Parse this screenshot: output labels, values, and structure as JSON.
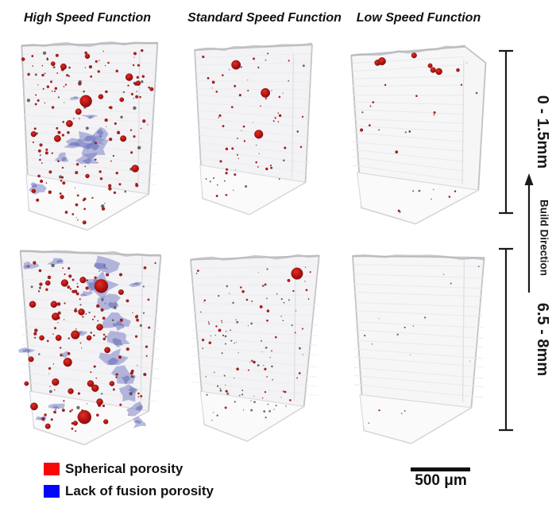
{
  "columns": [
    {
      "label": "High Speed Function"
    },
    {
      "label": "Standard Speed Function"
    },
    {
      "label": "Low Speed Function"
    }
  ],
  "rows": [
    {
      "label": "0 - 1.5mm"
    },
    {
      "label": "6.5 - 8mm"
    }
  ],
  "build_direction_label": "Build Direction",
  "scale_bar_label": "500 μm",
  "legend": {
    "items": [
      {
        "label": "Spherical porosity",
        "color": "#fa0505"
      },
      {
        "label": "Lack of fusion porosity",
        "color": "#0505fa"
      }
    ]
  },
  "colors": {
    "body": "#f3f3f5",
    "body_white": "#f6f6f7",
    "edge": "#c2c2c8",
    "floor": "#fafafb",
    "fold": "#d8d8dd",
    "streak": "#e9e9ee",
    "top_rough": "#b5b5bc",
    "sphere_hi": "#e03020",
    "sphere_mid": "#b11212",
    "sphere_lo": "#7d0a0a",
    "small_dot": "#9c1616",
    "speck": "#4f4444",
    "lof_fill": "#7d84c6",
    "lof_dark": "#5058ac"
  },
  "samples": [
    {
      "name": "high-speed 0-1.5mm",
      "column": "High Speed Function",
      "row": "0 - 1.5mm",
      "porosity": "many spherical pores, scattered lack-of-fusion patches mid-height",
      "seed": 11,
      "dots": 150,
      "dot_max_r": 0.9,
      "speck_ratio": 0.2,
      "tone": "light",
      "spheres": [
        [
          49,
          41,
          4
        ],
        [
          34,
          18,
          2
        ],
        [
          44,
          48,
          2
        ],
        [
          38,
          56,
          2.2
        ],
        [
          30,
          66,
          2.2
        ],
        [
          14,
          63,
          1.8
        ],
        [
          78,
          25,
          2.4
        ],
        [
          84,
          29,
          1.6
        ],
        [
          93,
          33,
          1.2
        ],
        [
          73,
          40,
          1.4
        ],
        [
          74,
          66,
          2
        ],
        [
          82,
          86,
          2.4
        ],
        [
          50,
          11,
          1.6
        ],
        [
          59,
          38,
          1.6
        ],
        [
          33,
          105,
          1.3
        ],
        [
          50,
          91,
          1.3
        ],
        [
          14,
          101,
          1.3
        ],
        [
          27,
          16,
          1.4
        ],
        [
          48,
          122,
          1.2
        ],
        [
          7,
          13,
          1.1
        ]
      ],
      "lof_blobs": [
        [
          50,
          67,
          11,
          5
        ],
        [
          56,
          73,
          8,
          6
        ],
        [
          43,
          70,
          9,
          3
        ],
        [
          58,
          63,
          5,
          4
        ],
        [
          50,
          79,
          7,
          4
        ],
        [
          33,
          79,
          4,
          3
        ],
        [
          16,
          99,
          5,
          4
        ],
        [
          51,
          51,
          5,
          1.5
        ],
        [
          41,
          39,
          3,
          1.2
        ]
      ]
    },
    {
      "name": "standard-speed 0-1.5mm",
      "column": "Standard Speed Function",
      "row": "0 - 1.5mm",
      "porosity": "moderate spherical porosity, three large pores, no lack of fusion",
      "seed": 22,
      "dots": 65,
      "dot_max_r": 0.7,
      "speck_ratio": 0.3,
      "tone": "light",
      "spheres": [
        [
          37,
          17,
          3.4
        ],
        [
          59,
          38,
          3.4
        ],
        [
          54,
          69,
          3.2
        ],
        [
          20,
          30,
          1
        ],
        [
          70,
          55,
          0.9
        ],
        [
          30,
          80,
          0.9
        ],
        [
          60,
          95,
          0.9
        ],
        [
          25,
          55,
          0.8
        ]
      ],
      "lof_blobs": []
    },
    {
      "name": "low-speed 0-1.5mm",
      "column": "Low Speed Function",
      "row": "0 - 1.5mm",
      "porosity": "few pores, small cluster of spherical pores near top",
      "seed": 33,
      "dots": 20,
      "dot_max_r": 0.5,
      "speck_ratio": 0.4,
      "tone": "white",
      "spheres": [
        [
          23,
          13,
          2
        ],
        [
          26,
          12,
          2.6
        ],
        [
          48,
          8,
          1.8
        ],
        [
          59,
          15,
          1.5
        ],
        [
          61,
          18,
          1.8
        ],
        [
          65,
          19,
          2.2
        ],
        [
          78,
          18,
          1.1
        ],
        [
          12,
          59,
          1
        ],
        [
          36,
          74,
          0.9
        ],
        [
          62,
          47,
          0.7
        ],
        [
          20,
          40,
          0.6
        ],
        [
          45,
          60,
          0.6
        ]
      ],
      "lof_blobs": []
    },
    {
      "name": "high-speed 6.5-8mm",
      "column": "High Speed Function",
      "row": "6.5 - 8mm",
      "porosity": "dense spherical porosity plus vertical lack-of-fusion band right of center",
      "seed": 44,
      "dots": 140,
      "dot_max_r": 0.9,
      "speck_ratio": 0.2,
      "tone": "light",
      "spheres": [
        [
          57,
          26,
          4.4
        ],
        [
          46,
          112,
          4.4
        ],
        [
          40,
          58,
          2.8
        ],
        [
          35,
          76,
          2.8
        ],
        [
          27,
          46,
          2.4
        ],
        [
          13,
          105,
          2.4
        ],
        [
          56,
          53,
          2.1
        ],
        [
          53,
          93,
          2.3
        ],
        [
          50,
          90,
          2.1
        ],
        [
          27,
          89,
          2.3
        ],
        [
          33,
          24,
          2.3
        ],
        [
          45,
          22,
          2
        ],
        [
          12,
          38,
          2.1
        ],
        [
          26,
          38,
          2.1
        ],
        [
          61,
          68,
          1.9
        ],
        [
          56,
          102,
          2.1
        ],
        [
          22,
          118,
          1.7
        ],
        [
          11,
          74,
          1.7
        ],
        [
          44,
          43,
          2.1
        ],
        [
          29,
          60,
          1.9
        ],
        [
          70,
          30,
          1.7
        ],
        [
          37,
          95,
          1.8
        ],
        [
          18,
          60,
          1.6
        ],
        [
          22,
          24,
          1.6
        ],
        [
          49,
          60,
          1.6
        ],
        [
          64,
          90,
          1.6
        ],
        [
          40,
          116,
          1.5
        ],
        [
          8,
          90,
          1.4
        ],
        [
          60,
          115,
          1.5
        ]
      ],
      "lof_blobs": [
        [
          60,
          11,
          9,
          5
        ],
        [
          56,
          25,
          10,
          7
        ],
        [
          62,
          37,
          8,
          5
        ],
        [
          66,
          49,
          9,
          6
        ],
        [
          69,
          61,
          7,
          5
        ],
        [
          65,
          73,
          8,
          5.5
        ],
        [
          71,
          85,
          6.5,
          5
        ],
        [
          75,
          96,
          6.5,
          4.5
        ],
        [
          79,
          107,
          5.5,
          4
        ],
        [
          82,
          116,
          4.5,
          3
        ],
        [
          10,
          13,
          5,
          2
        ],
        [
          28,
          10,
          6,
          2
        ],
        [
          47,
          31,
          4,
          2
        ],
        [
          8,
          68,
          4.5,
          2
        ],
        [
          33,
          71,
          3,
          1.5
        ],
        [
          28,
          105,
          5,
          2
        ],
        [
          18,
          113,
          3.5,
          1.5
        ],
        [
          80,
          25,
          4,
          1.5
        ],
        [
          44,
          57,
          3,
          1.5
        ]
      ]
    },
    {
      "name": "standard-speed 6.5-8mm",
      "column": "Standard Speed Function",
      "row": "6.5 - 8mm",
      "porosity": "one large spherical pore top right, fine scattered specks",
      "seed": 55,
      "dots": 110,
      "dot_max_r": 0.55,
      "speck_ratio": 0.55,
      "tone": "light",
      "spheres": [
        [
          81,
          15,
          4.2
        ],
        [
          25,
          56,
          1
        ],
        [
          55,
          39,
          1
        ],
        [
          18,
          65,
          0.9
        ],
        [
          50,
          79,
          0.9
        ],
        [
          38,
          84,
          0.9
        ],
        [
          60,
          42,
          0.9
        ],
        [
          13,
          63,
          0.8
        ],
        [
          75,
          20,
          1
        ],
        [
          42,
          28,
          0.9
        ],
        [
          30,
          100,
          0.8
        ],
        [
          58,
          84,
          0.8
        ]
      ],
      "lof_blobs": []
    },
    {
      "name": "low-speed 6.5-8mm",
      "column": "Low Speed Function",
      "row": "6.5 - 8mm",
      "porosity": "nearly pore free, only a few tiny specks",
      "seed": 66,
      "dots": 16,
      "dot_max_r": 0.4,
      "speck_ratio": 0.8,
      "tone": "white",
      "spheres": [],
      "lof_blobs": []
    }
  ]
}
